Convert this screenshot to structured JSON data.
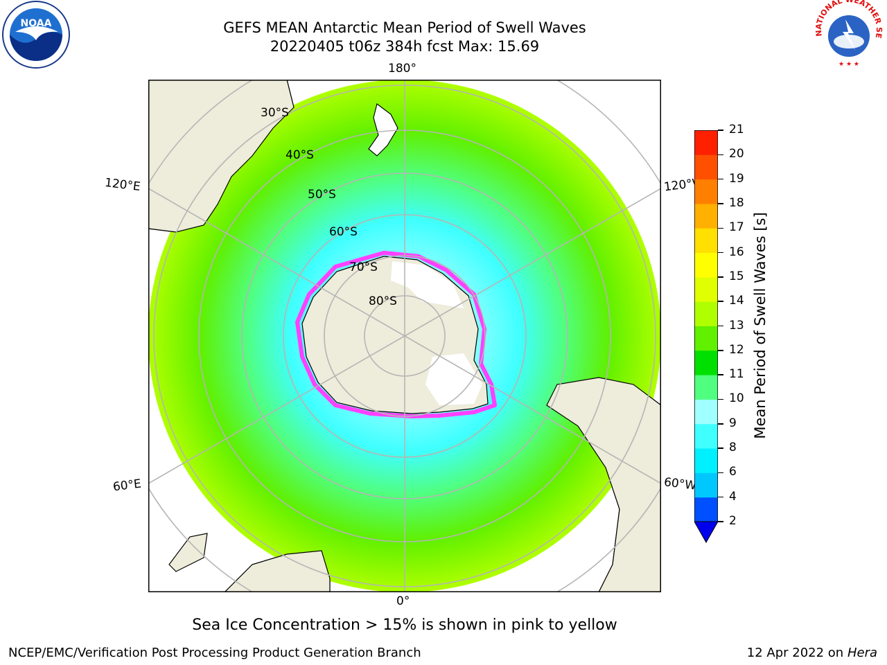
{
  "title": {
    "line1": "GEFS MEAN Antarctic Mean Period of Swell Waves",
    "line2": "20220405 t06z 384h fcst   Max: 15.69"
  },
  "map": {
    "projection": "south-polar-stereographic",
    "lon_labels": {
      "top": "180°",
      "bottom": "0°",
      "upper_left": "120°E",
      "upper_right": "120°W",
      "lower_left": "60°E",
      "lower_right": "60°W"
    },
    "lat_labels": [
      "30°S",
      "40°S",
      "50°S",
      "60°S",
      "70°S",
      "80°S"
    ],
    "colors": {
      "land": "#eeecda",
      "ice_shelf": "#ffffff",
      "grid": "#b5b5b5",
      "ice_edge": "#ff40ff"
    }
  },
  "colorbar": {
    "label": "Mean Period of Swell Waves [s]",
    "ticks": [
      "2",
      "4",
      "6",
      "8",
      "9",
      "10",
      "11",
      "12",
      "13",
      "14",
      "15",
      "16",
      "17",
      "18",
      "19",
      "20",
      "21"
    ],
    "colors": [
      "#0050ff",
      "#00c8ff",
      "#00f0ff",
      "#40ffff",
      "#a0ffff",
      "#50ff80",
      "#00e000",
      "#60f000",
      "#b0ff00",
      "#e0ff00",
      "#ffff00",
      "#ffe000",
      "#ffb000",
      "#ff8000",
      "#ff5000",
      "#ff2000"
    ],
    "under_color": "#0000ee"
  },
  "note": "Sea Ice Concentration > 15% is shown in pink to yellow",
  "footer": {
    "left": "NCEP/EMC/Verification Post Processing Product Generation Branch",
    "right_date": "12 Apr 2022 on ",
    "right_host": "Hera"
  },
  "logos": {
    "left": {
      "icon": "noaa-logo-icon",
      "text": "NOAA"
    },
    "right": {
      "icon": "nws-logo-icon",
      "text": "NATIONAL WEATHER SERVICE"
    }
  }
}
